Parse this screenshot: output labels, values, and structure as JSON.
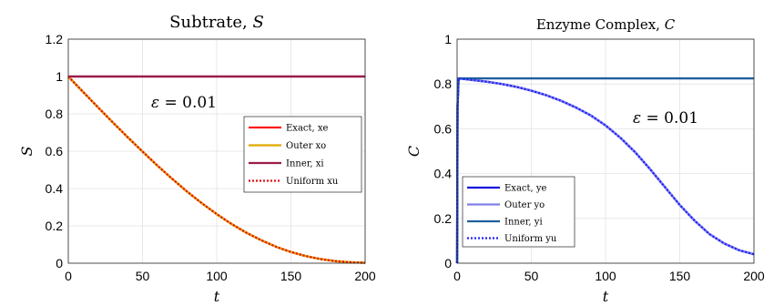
{
  "chart_data": [
    {
      "type": "line",
      "title": "Subtrate, S",
      "xlabel": "t",
      "ylabel": "S",
      "xlim": [
        0,
        200
      ],
      "ylim": [
        0,
        1.2
      ],
      "xticks": [
        0,
        50,
        100,
        150,
        200
      ],
      "xtick_labels": [
        "0",
        "50",
        "100",
        "150",
        "200"
      ],
      "yticks": [
        0,
        0.2,
        0.4,
        0.6,
        0.8,
        1,
        1.2
      ],
      "ytick_labels": [
        "0",
        "0.2",
        "0.4",
        "0.6",
        "0.8",
        "1",
        "1.2"
      ],
      "grid": true,
      "legend_position": "right",
      "annotation": "ε = 0.01",
      "x": [
        0,
        10,
        20,
        30,
        40,
        50,
        60,
        70,
        80,
        90,
        100,
        110,
        120,
        130,
        140,
        150,
        160,
        170,
        180,
        190,
        200
      ],
      "series": [
        {
          "name": "Exact, xe",
          "color": "#ff1a1a",
          "style": "solid",
          "values": [
            1.0,
            0.917,
            0.835,
            0.754,
            0.675,
            0.598,
            0.523,
            0.452,
            0.384,
            0.321,
            0.263,
            0.21,
            0.163,
            0.123,
            0.088,
            0.06,
            0.038,
            0.022,
            0.011,
            0.005,
            0.002
          ]
        },
        {
          "name": "Outer xo",
          "color": "#e0a800",
          "style": "solid",
          "values": [
            1.0,
            0.917,
            0.835,
            0.754,
            0.675,
            0.598,
            0.523,
            0.452,
            0.384,
            0.321,
            0.263,
            0.21,
            0.163,
            0.123,
            0.088,
            0.06,
            0.038,
            0.022,
            0.011,
            0.005,
            0.002
          ]
        },
        {
          "name": "Inner, xi",
          "color": "#9b1b4b",
          "style": "solid",
          "values": [
            1,
            1,
            1,
            1,
            1,
            1,
            1,
            1,
            1,
            1,
            1,
            1,
            1,
            1,
            1,
            1,
            1,
            1,
            1,
            1,
            1
          ]
        },
        {
          "name": "Uniform xu",
          "color": "#e01010",
          "style": "dotted",
          "values": [
            1.0,
            0.917,
            0.835,
            0.754,
            0.675,
            0.598,
            0.523,
            0.452,
            0.384,
            0.321,
            0.263,
            0.21,
            0.163,
            0.123,
            0.088,
            0.06,
            0.038,
            0.022,
            0.011,
            0.005,
            0.002
          ]
        }
      ]
    },
    {
      "type": "line",
      "title": "Enzyme Complex, C",
      "xlabel": "t",
      "ylabel": "C",
      "xlim": [
        0,
        200
      ],
      "ylim": [
        0,
        1
      ],
      "xticks": [
        0,
        50,
        100,
        150,
        200
      ],
      "xtick_labels": [
        "0",
        "50",
        "100",
        "150",
        "200"
      ],
      "yticks": [
        0,
        0.2,
        0.4,
        0.6,
        0.8,
        1
      ],
      "ytick_labels": [
        "0",
        "0.2",
        "0.4",
        "0.6",
        "0.8",
        "1"
      ],
      "grid": true,
      "legend_position": "bottom-left",
      "annotation": "ε = 0.01",
      "x": [
        0,
        0.3,
        1,
        10,
        20,
        30,
        40,
        50,
        60,
        70,
        80,
        90,
        100,
        110,
        120,
        130,
        140,
        150,
        160,
        170,
        180,
        190,
        200
      ],
      "series": [
        {
          "name": "Exact, ye",
          "color": "#1010e0",
          "style": "solid",
          "values": [
            0,
            0.7,
            0.825,
            0.818,
            0.81,
            0.8,
            0.787,
            0.77,
            0.75,
            0.725,
            0.695,
            0.66,
            0.615,
            0.56,
            0.495,
            0.42,
            0.34,
            0.26,
            0.19,
            0.13,
            0.088,
            0.058,
            0.04
          ]
        },
        {
          "name": "Outer yo",
          "color": "#8080e8",
          "style": "solid",
          "values": [
            0.825,
            0.825,
            0.825,
            0.818,
            0.81,
            0.8,
            0.787,
            0.77,
            0.75,
            0.725,
            0.695,
            0.66,
            0.615,
            0.56,
            0.495,
            0.42,
            0.34,
            0.26,
            0.19,
            0.13,
            0.088,
            0.058,
            0.04
          ]
        },
        {
          "name": "Inner, yi",
          "color": "#1f5f9f",
          "style": "solid",
          "values": [
            0,
            0.7,
            0.825,
            0.825,
            0.825,
            0.825,
            0.825,
            0.825,
            0.825,
            0.825,
            0.825,
            0.825,
            0.825,
            0.825,
            0.825,
            0.825,
            0.825,
            0.825,
            0.825,
            0.825,
            0.825,
            0.825,
            0.825
          ]
        },
        {
          "name": "Uniform yu",
          "color": "#2020ff",
          "style": "dotted",
          "values": [
            0,
            0.7,
            0.825,
            0.818,
            0.81,
            0.8,
            0.787,
            0.77,
            0.75,
            0.725,
            0.695,
            0.66,
            0.615,
            0.56,
            0.495,
            0.42,
            0.34,
            0.26,
            0.19,
            0.13,
            0.088,
            0.058,
            0.04
          ]
        }
      ]
    }
  ]
}
